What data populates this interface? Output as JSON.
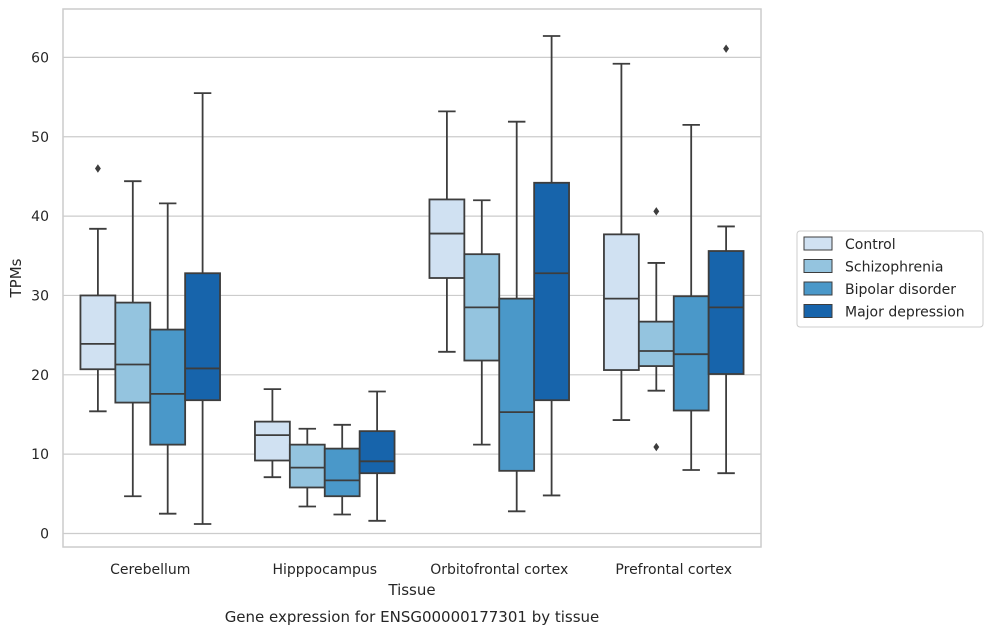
{
  "chart_data": {
    "type": "boxplot",
    "caption": "Gene expression for ENSG00000177301 by tissue",
    "xlabel": "Tissue",
    "ylabel": "TPMs",
    "ylim": [
      -1.7,
      66.1
    ],
    "yticks": [
      0,
      10,
      20,
      30,
      40,
      50,
      60
    ],
    "grid": "horizontal",
    "legend_position": "right",
    "categories": [
      "Cerebellum",
      "Hipppocampus",
      "Orbitofrontal cortex",
      "Prefrontal cortex"
    ],
    "series": [
      {
        "name": "Control",
        "color": "#d0e1f2",
        "boxes": [
          {
            "whisker_low": 15.4,
            "q1": 20.7,
            "median": 23.9,
            "q3": 30.0,
            "whisker_high": 38.4,
            "outliers": [
              46.0
            ]
          },
          {
            "whisker_low": 7.1,
            "q1": 9.2,
            "median": 12.4,
            "q3": 14.1,
            "whisker_high": 18.2,
            "outliers": []
          },
          {
            "whisker_low": 22.9,
            "q1": 32.2,
            "median": 37.8,
            "q3": 42.1,
            "whisker_high": 53.2,
            "outliers": []
          },
          {
            "whisker_low": 14.3,
            "q1": 20.6,
            "median": 29.6,
            "q3": 37.7,
            "whisker_high": 59.2,
            "outliers": []
          }
        ]
      },
      {
        "name": "Schizophrenia",
        "color": "#94c4df",
        "boxes": [
          {
            "whisker_low": 4.7,
            "q1": 16.5,
            "median": 21.3,
            "q3": 29.1,
            "whisker_high": 44.4,
            "outliers": []
          },
          {
            "whisker_low": 3.4,
            "q1": 5.8,
            "median": 8.3,
            "q3": 11.2,
            "whisker_high": 13.2,
            "outliers": []
          },
          {
            "whisker_low": 11.2,
            "q1": 21.8,
            "median": 28.5,
            "q3": 35.2,
            "whisker_high": 42.0,
            "outliers": []
          },
          {
            "whisker_low": 18.0,
            "q1": 21.1,
            "median": 23.0,
            "q3": 26.7,
            "whisker_high": 34.1,
            "outliers": [
              10.9,
              40.6
            ]
          }
        ]
      },
      {
        "name": "Bipolar disorder",
        "color": "#4a98c9",
        "boxes": [
          {
            "whisker_low": 2.5,
            "q1": 11.2,
            "median": 17.6,
            "q3": 25.7,
            "whisker_high": 41.6,
            "outliers": []
          },
          {
            "whisker_low": 2.4,
            "q1": 4.7,
            "median": 6.7,
            "q3": 10.7,
            "whisker_high": 13.7,
            "outliers": []
          },
          {
            "whisker_low": 2.8,
            "q1": 7.9,
            "median": 15.3,
            "q3": 29.6,
            "whisker_high": 51.9,
            "outliers": []
          },
          {
            "whisker_low": 8.0,
            "q1": 15.5,
            "median": 22.6,
            "q3": 29.9,
            "whisker_high": 51.5,
            "outliers": []
          }
        ]
      },
      {
        "name": "Major depression",
        "color": "#1764ab",
        "boxes": [
          {
            "whisker_low": 1.2,
            "q1": 16.8,
            "median": 20.8,
            "q3": 32.8,
            "whisker_high": 55.5,
            "outliers": []
          },
          {
            "whisker_low": 1.6,
            "q1": 7.6,
            "median": 9.1,
            "q3": 12.9,
            "whisker_high": 17.9,
            "outliers": []
          },
          {
            "whisker_low": 4.8,
            "q1": 16.8,
            "median": 32.8,
            "q3": 44.2,
            "whisker_high": 62.7,
            "outliers": []
          },
          {
            "whisker_low": 7.6,
            "q1": 20.1,
            "median": 28.5,
            "q3": 35.6,
            "whisker_high": 38.7,
            "outliers": [
              61.1
            ]
          }
        ]
      }
    ]
  }
}
